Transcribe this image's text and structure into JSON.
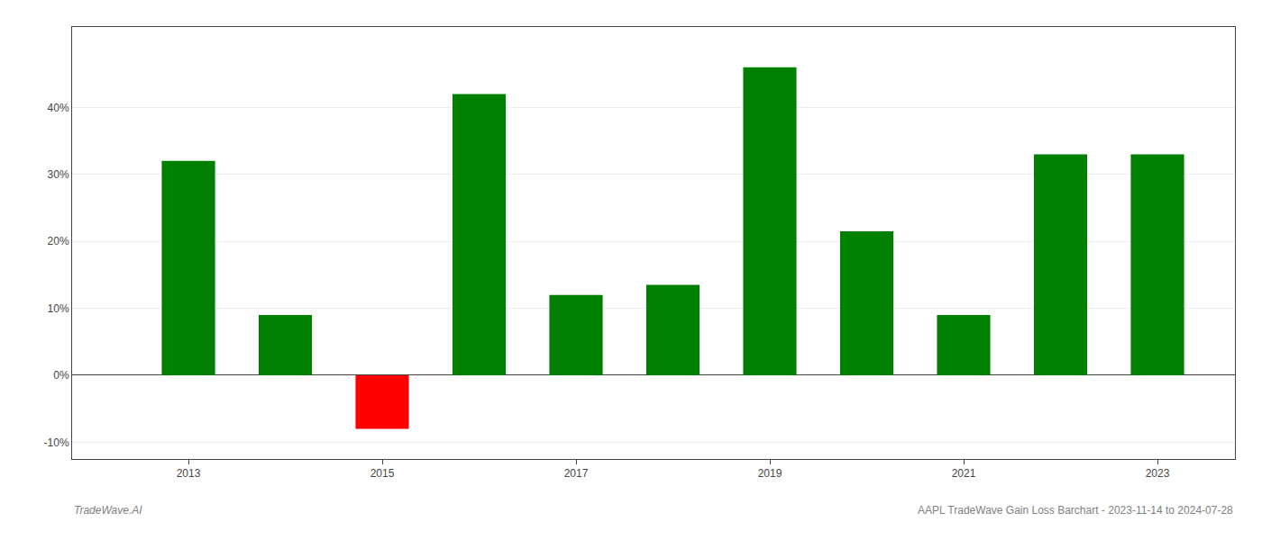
{
  "chart_data": {
    "type": "bar",
    "x": [
      2013,
      2014,
      2015,
      2016,
      2017,
      2018,
      2019,
      2020,
      2021,
      2022,
      2023
    ],
    "values": [
      0.32,
      0.09,
      -0.08,
      0.42,
      0.12,
      0.135,
      0.46,
      0.215,
      0.09,
      0.33,
      0.33
    ],
    "colors": [
      "#008000",
      "#008000",
      "#ff0000",
      "#008000",
      "#008000",
      "#008000",
      "#008000",
      "#008000",
      "#008000",
      "#008000",
      "#008000"
    ],
    "xlim": [
      2011.8,
      2023.8
    ],
    "xticks": [
      2013,
      2015,
      2017,
      2019,
      2021,
      2023
    ],
    "ylim": [
      -0.125,
      0.52
    ],
    "yticks": [
      {
        "value": -0.1,
        "label": "-10%"
      },
      {
        "value": 0.0,
        "label": "0%"
      },
      {
        "value": 0.1,
        "label": "10%"
      },
      {
        "value": 0.2,
        "label": "20%"
      },
      {
        "value": 0.3,
        "label": "30%"
      },
      {
        "value": 0.4,
        "label": "40%"
      }
    ],
    "grid": true,
    "annotations": [
      "TradeWave.AI",
      "AAPL TradeWave Gain Loss Barchart - 2023-11-14 to 2024-07-28"
    ]
  }
}
